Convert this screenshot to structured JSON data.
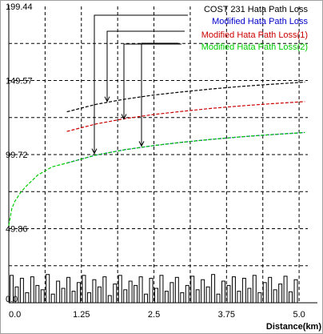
{
  "chart_data": {
    "type": "line",
    "xlabel": "Distance(km)",
    "ylabel": "",
    "xlim": [
      0,
      5.15
    ],
    "ylim": [
      0,
      199.44
    ],
    "x_ticks": [
      "0.0",
      "1.25",
      "2.5",
      "3.75",
      "5.0"
    ],
    "y_ticks": [
      "0.0",
      "49.86",
      "99.72",
      "149.57",
      "199.44"
    ],
    "grid": true,
    "legend_position": "top-right",
    "series": [
      {
        "name": "COST 231 Hata  Path Loss",
        "color": "#000000",
        "style": "dashed",
        "x": [
          1.0,
          1.5,
          2.0,
          2.5,
          3.0,
          3.5,
          4.0,
          4.5,
          5.1
        ],
        "y": [
          128.5,
          133.5,
          137.0,
          139.8,
          142.0,
          143.9,
          145.6,
          147.0,
          148.5
        ]
      },
      {
        "name": "Modified Hata  Path Loss",
        "color": "#0000cc",
        "style": "dashed",
        "x": [
          1.0,
          1.5,
          2.0,
          2.5,
          3.0,
          3.5,
          4.0,
          4.5,
          5.1
        ],
        "y": [
          94.0,
          99.4,
          103.0,
          105.8,
          108.1,
          110.0,
          111.7,
          113.1,
          114.6
        ]
      },
      {
        "name": "Modified Hata  Path Loss(1)",
        "color": "#cc0000",
        "style": "dashed",
        "x": [
          1.0,
          1.5,
          2.0,
          2.5,
          3.0,
          3.5,
          4.0,
          4.5,
          5.1
        ],
        "y": [
          115.3,
          120.3,
          123.9,
          126.7,
          128.9,
          130.9,
          132.5,
          133.9,
          135.4
        ]
      },
      {
        "name": "Modified Hata  Path Loss(2)",
        "color": "#00cc00",
        "style": "dashed",
        "x": [
          0.0,
          0.05,
          0.1,
          0.2,
          0.3,
          0.5,
          0.75,
          1.0,
          1.5,
          2.0,
          2.5,
          3.0,
          3.5,
          4.0,
          4.5,
          5.1
        ],
        "y": [
          52.0,
          63.0,
          68.0,
          74.0,
          78.5,
          86.0,
          91.5,
          94.0,
          99.4,
          103.0,
          105.8,
          108.1,
          110.0,
          111.7,
          113.1,
          114.6
        ]
      }
    ]
  },
  "colors": {
    "grid": "#000000",
    "plot_bg": "#ffffff",
    "axis": "#000000",
    "histogram": "#000000"
  },
  "histogram_heights": [
    0.95,
    0.55,
    0.85,
    0.35,
    0.9,
    0.6,
    0.45,
    0.98,
    0.3,
    0.75,
    0.5,
    0.88,
    0.4,
    0.7,
    0.95,
    0.35,
    0.8,
    0.55,
    0.9,
    0.25,
    0.65,
    0.95,
    0.45,
    0.75,
    0.6,
    0.9,
    0.3,
    0.85,
    0.5,
    0.95,
    0.4,
    0.7,
    0.88,
    0.35,
    0.6,
    0.92,
    0.45,
    0.8,
    0.55,
    0.98,
    0.3,
    0.75,
    0.6,
    0.9,
    0.4,
    0.85,
    0.5,
    0.95,
    0.35,
    0.7,
    0.88,
    0.45,
    0.65,
    0.92,
    0.38,
    0.8
  ]
}
